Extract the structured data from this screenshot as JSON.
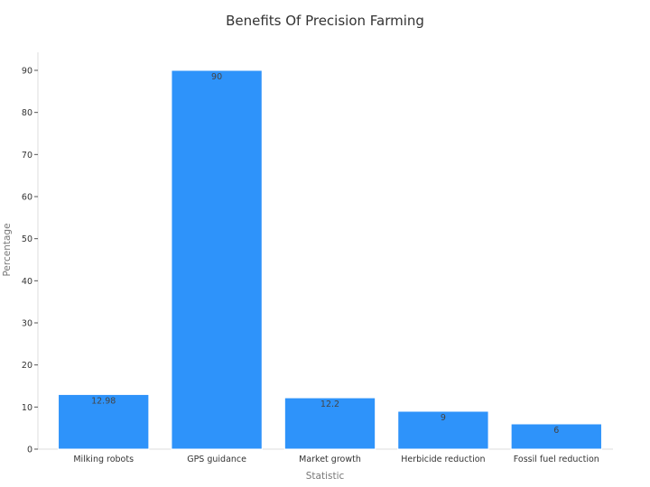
{
  "chart_data": {
    "type": "bar",
    "title": "Benefits Of Precision Farming",
    "xlabel": "Statistic",
    "ylabel": "Percentage",
    "categories": [
      "Milking robots",
      "GPS guidance",
      "Market growth",
      "Herbicide reduction",
      "Fossil fuel reduction"
    ],
    "values": [
      12.98,
      90,
      12.2,
      9,
      6
    ],
    "data_labels": [
      "12.98",
      "90",
      "12.2",
      "9",
      "6"
    ],
    "ylim": [
      0,
      95
    ],
    "yticks": [
      0,
      10,
      20,
      30,
      40,
      50,
      60,
      70,
      80,
      90
    ],
    "grid": false,
    "legend": "none",
    "colors": {
      "bar": "#2e93fa"
    }
  }
}
